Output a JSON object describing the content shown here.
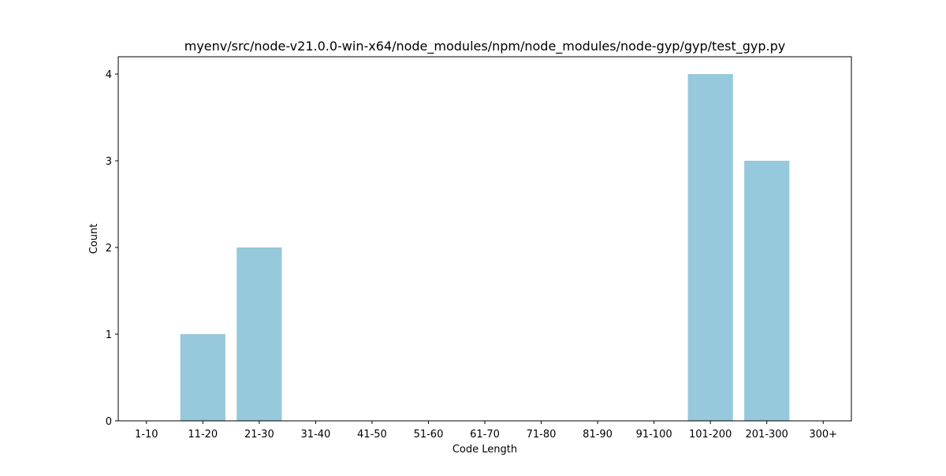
{
  "chart_data": {
    "type": "bar",
    "title": "myenv/src/node-v21.0.0-win-x64/node_modules/npm/node_modules/node-gyp/gyp/test_gyp.py",
    "xlabel": "Code Length",
    "ylabel": "Count",
    "categories": [
      "1-10",
      "11-20",
      "21-30",
      "31-40",
      "41-50",
      "51-60",
      "61-70",
      "71-80",
      "81-90",
      "91-100",
      "101-200",
      "201-300",
      "300+"
    ],
    "values": [
      0,
      1,
      2,
      0,
      0,
      0,
      0,
      0,
      0,
      0,
      4,
      3,
      0
    ],
    "ylim": [
      0,
      4.2
    ],
    "yticks": [
      0,
      1,
      2,
      3,
      4
    ],
    "bar_color": "#96c9dc",
    "grid": false,
    "legend": "none"
  }
}
